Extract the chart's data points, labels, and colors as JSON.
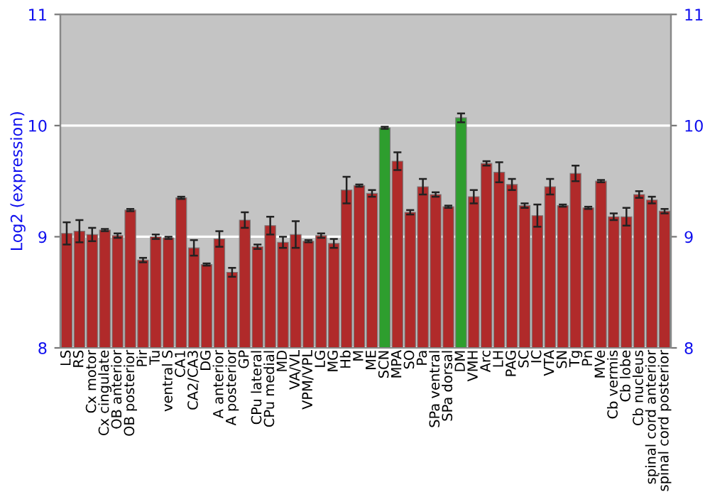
{
  "chart_data": {
    "type": "bar",
    "ylabel": "Log2 (expression)",
    "categories": [
      "LS",
      "RS",
      "Cx motor",
      "Cx cingulate",
      "OB anterior",
      "OB posterior",
      "Pir",
      "Tu",
      "ventral S",
      "CA1",
      "CA2/CA3",
      "DG",
      "A anterior",
      "A posterior",
      "GP",
      "CPu lateral",
      "CPu medial",
      "MD",
      "VA/VL",
      "VPM/VPL",
      "LG",
      "MG",
      "Hb",
      "M",
      "ME",
      "SCN",
      "MPA",
      "SO",
      "Pa",
      "SPa ventral",
      "SPa dorsal",
      "DM",
      "VMH",
      "Arc",
      "LH",
      "PAG",
      "SC",
      "IC",
      "VTA",
      "SN",
      "Tg",
      "Pn",
      "MVe",
      "Cb vermis",
      "Cb lobe",
      "Cb nucleus",
      "spinal cord anterior",
      "spinal cord posterior"
    ],
    "values": [
      9.03,
      9.05,
      9.02,
      9.06,
      9.01,
      9.24,
      8.79,
      9.0,
      8.99,
      9.35,
      8.9,
      8.75,
      8.98,
      8.68,
      9.15,
      8.91,
      9.1,
      8.95,
      9.02,
      8.96,
      9.01,
      8.94,
      9.42,
      9.46,
      9.39,
      9.98,
      9.68,
      9.22,
      9.45,
      9.38,
      9.27,
      10.07,
      9.36,
      9.66,
      9.58,
      9.47,
      9.28,
      9.19,
      9.45,
      9.28,
      9.57,
      9.26,
      9.5,
      9.18,
      9.18,
      9.38,
      9.33,
      9.23
    ],
    "errors": [
      0.1,
      0.1,
      0.06,
      0.01,
      0.02,
      0.01,
      0.02,
      0.02,
      0.01,
      0.01,
      0.07,
      0.01,
      0.07,
      0.04,
      0.07,
      0.02,
      0.08,
      0.05,
      0.12,
      0.01,
      0.02,
      0.04,
      0.12,
      0.01,
      0.03,
      0.01,
      0.08,
      0.02,
      0.07,
      0.02,
      0.01,
      0.04,
      0.06,
      0.02,
      0.09,
      0.05,
      0.02,
      0.1,
      0.07,
      0.01,
      0.07,
      0.01,
      0.01,
      0.03,
      0.08,
      0.03,
      0.03,
      0.02
    ],
    "colors": [
      "#b02a2a",
      "#b02a2a",
      "#b02a2a",
      "#b02a2a",
      "#b02a2a",
      "#b02a2a",
      "#b02a2a",
      "#b02a2a",
      "#b02a2a",
      "#b02a2a",
      "#b02a2a",
      "#b02a2a",
      "#b02a2a",
      "#b02a2a",
      "#b02a2a",
      "#b02a2a",
      "#b02a2a",
      "#b02a2a",
      "#b02a2a",
      "#b02a2a",
      "#b02a2a",
      "#b02a2a",
      "#b02a2a",
      "#b02a2a",
      "#b02a2a",
      "#2e9e2e",
      "#b02a2a",
      "#b02a2a",
      "#b02a2a",
      "#b02a2a",
      "#b02a2a",
      "#2e9e2e",
      "#b02a2a",
      "#b02a2a",
      "#b02a2a",
      "#b02a2a",
      "#b02a2a",
      "#b02a2a",
      "#b02a2a",
      "#b02a2a",
      "#b02a2a",
      "#b02a2a",
      "#b02a2a",
      "#b02a2a",
      "#b02a2a",
      "#b02a2a",
      "#b02a2a",
      "#b02a2a"
    ],
    "ylim": [
      8,
      11
    ],
    "yticks": [
      8,
      9,
      10,
      11
    ],
    "y2lim": [
      8,
      11
    ],
    "y2ticks": [
      8,
      9,
      10,
      11
    ],
    "grid": "y",
    "legend": false
  }
}
